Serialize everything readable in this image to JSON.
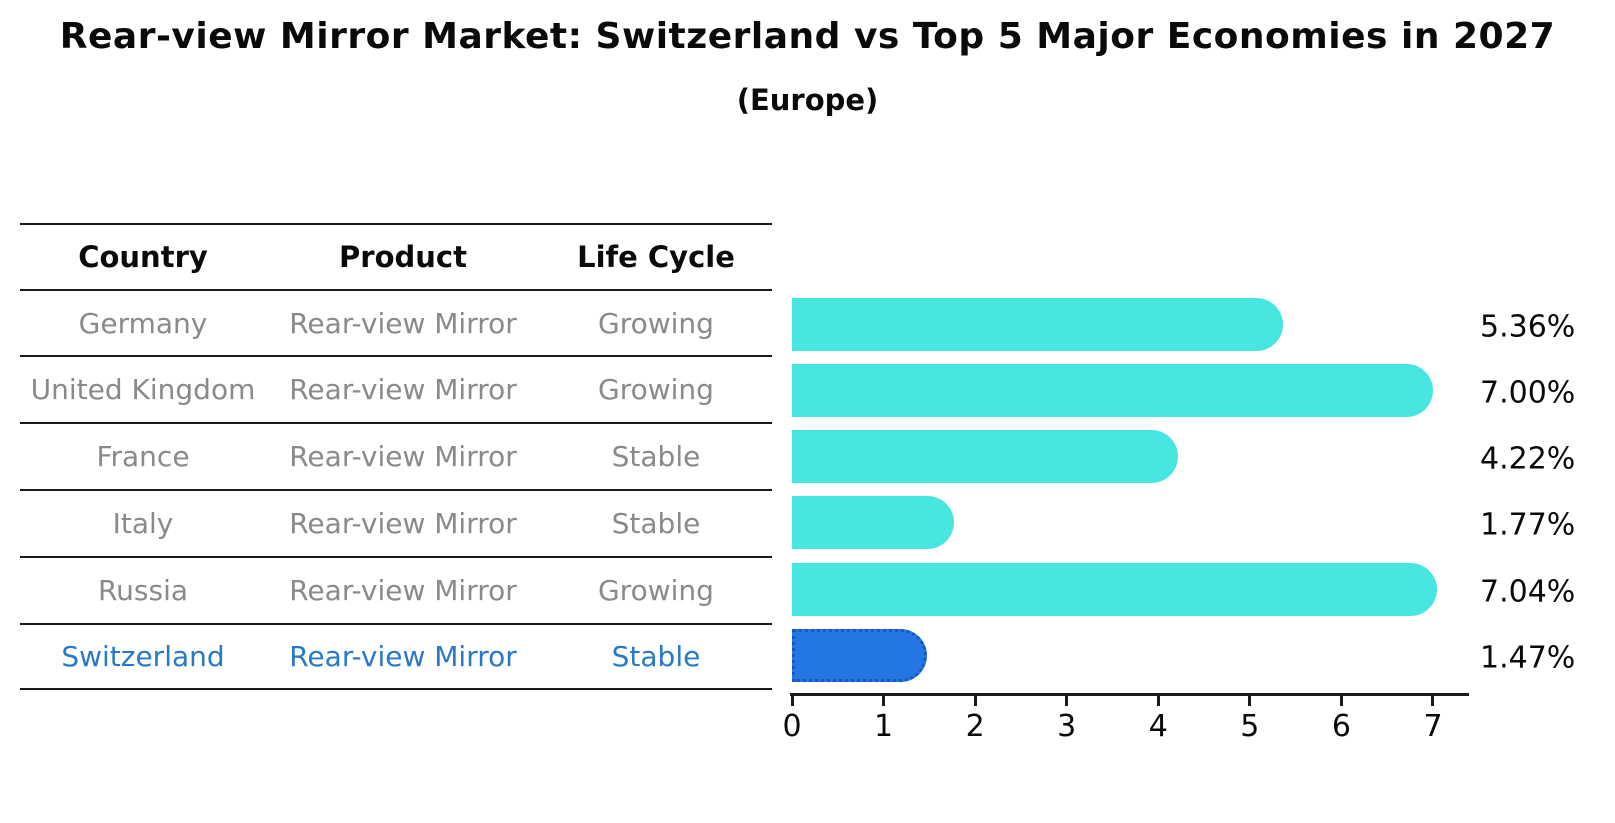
{
  "title": "Rear-view Mirror Market: Switzerland vs Top 5 Major Economies in 2027",
  "subtitle": "(Europe)",
  "table": {
    "headers": [
      "Country",
      "Product",
      "Life Cycle"
    ],
    "rows": [
      {
        "country": "Germany",
        "product": "Rear-view Mirror",
        "life_cycle": "Growing",
        "highlight": false
      },
      {
        "country": "United Kingdom",
        "product": "Rear-view Mirror",
        "life_cycle": "Growing",
        "highlight": false
      },
      {
        "country": "France",
        "product": "Rear-view Mirror",
        "life_cycle": "Stable",
        "highlight": false
      },
      {
        "country": "Italy",
        "product": "Rear-view Mirror",
        "life_cycle": "Stable",
        "highlight": false
      },
      {
        "country": "Russia",
        "product": "Rear-view Mirror",
        "life_cycle": "Growing",
        "highlight": false
      },
      {
        "country": "Switzerland",
        "product": "Rear-view Mirror",
        "life_cycle": "Stable",
        "highlight": true
      }
    ]
  },
  "chart_data": {
    "type": "bar",
    "orientation": "horizontal",
    "title": "Rear-view Mirror Market: Switzerland vs Top 5 Major Economies in 2027",
    "subtitle": "(Europe)",
    "categories": [
      "Germany",
      "United Kingdom",
      "France",
      "Italy",
      "Russia",
      "Switzerland"
    ],
    "values": [
      5.36,
      7.0,
      4.22,
      1.77,
      7.04,
      1.47
    ],
    "value_labels": [
      "5.36%",
      "7.00%",
      "4.22%",
      "1.77%",
      "7.04%",
      "1.47%"
    ],
    "highlight_index": 5,
    "xlim": [
      0,
      7.4
    ],
    "x_ticks": [
      "0",
      "1",
      "2",
      "3",
      "4",
      "5",
      "6",
      "7"
    ],
    "grid": false,
    "legend": false,
    "colors": {
      "bar_default": "#48e6e1",
      "bar_highlight": "#2376e4",
      "bar_highlight_border": "#1a55c8",
      "highlight_text": "#2979ca",
      "row_text": "#8a8a8a",
      "header_text": "#0a0a0a",
      "axis": "#1a1a1a"
    }
  }
}
